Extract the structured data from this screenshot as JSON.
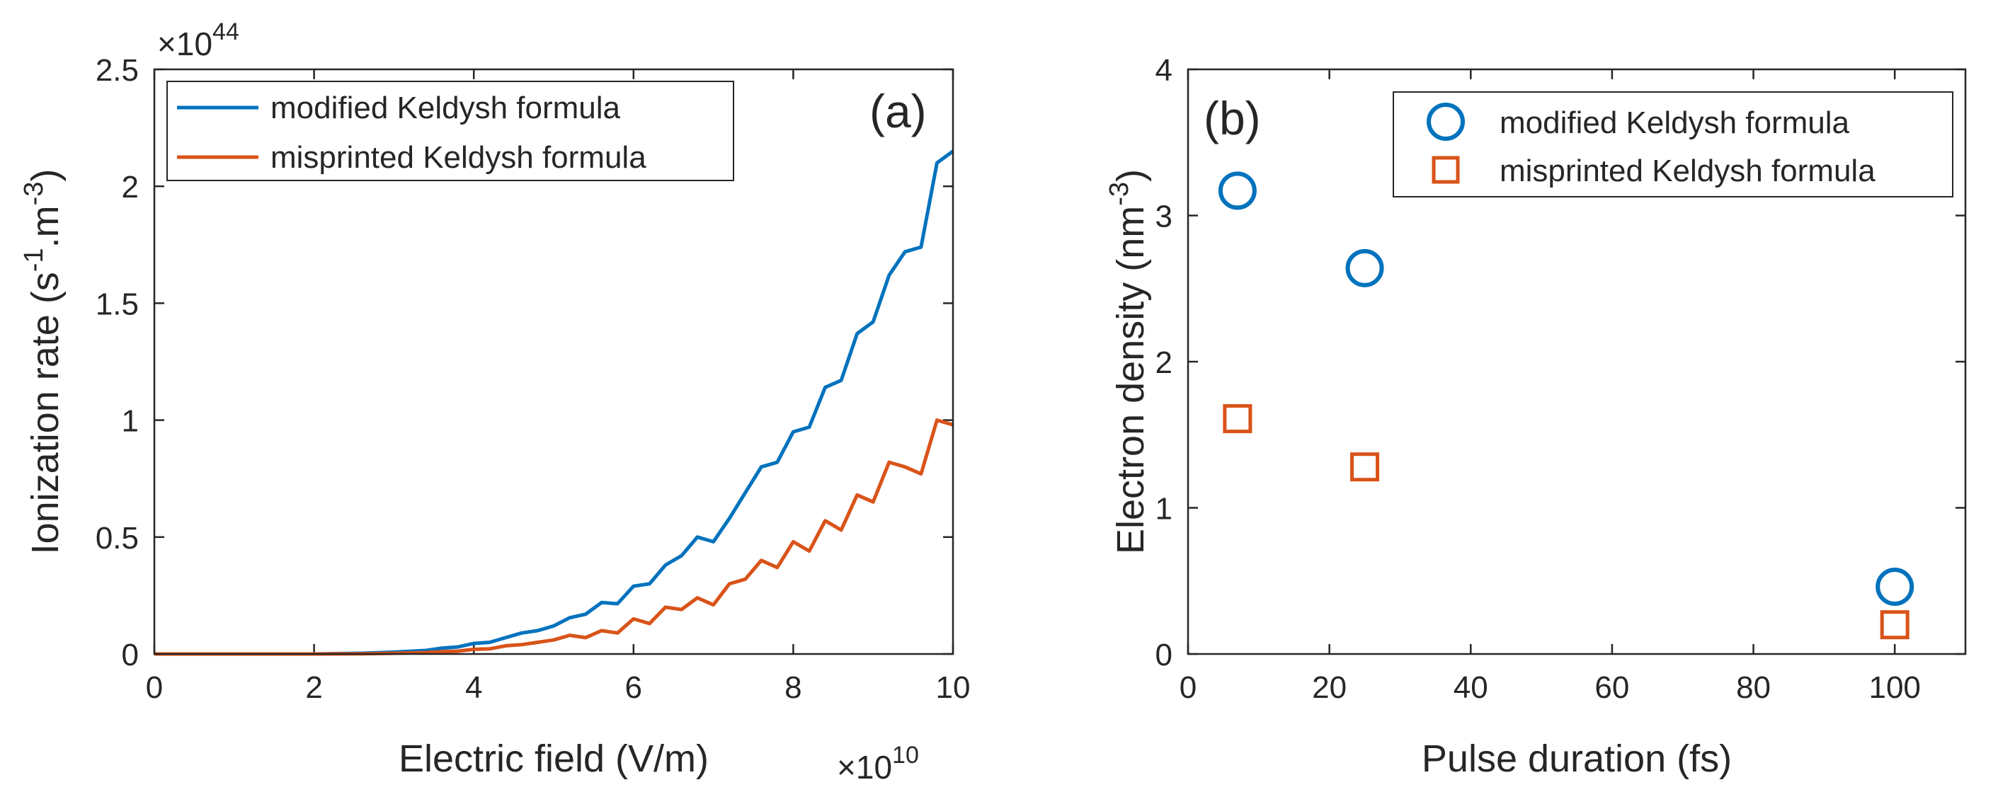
{
  "chart_data": [
    {
      "type": "line",
      "panel_label": "(a)",
      "xlabel": "Electric field (V/m)",
      "ylabel_main": "Ionization rate (s",
      "ylabel_sup1": "-1",
      "ylabel_mid": ".m",
      "ylabel_sup2": "-3",
      "ylabel_end": ")",
      "x_multiplier_base": "×10",
      "x_multiplier_exp": "10",
      "y_multiplier_base": "×10",
      "y_multiplier_exp": "44",
      "xlim": [
        0,
        10
      ],
      "ylim": [
        0,
        2.5
      ],
      "xticks": [
        "0",
        "2",
        "4",
        "6",
        "8",
        "10"
      ],
      "yticks": [
        "0",
        "0.5",
        "1",
        "1.5",
        "2",
        "2.5"
      ],
      "xtick_values": [
        0,
        2,
        4,
        6,
        8,
        10
      ],
      "ytick_values": [
        0,
        0.5,
        1,
        1.5,
        2,
        2.5
      ],
      "legend_position": "top-left",
      "series": [
        {
          "name": "modified Keldysh formula",
          "color": "#0072BD",
          "x": [
            0,
            1,
            2,
            2.6,
            3,
            3.4,
            3.6,
            3.8,
            4.0,
            4.2,
            4.4,
            4.6,
            4.8,
            5.0,
            5.2,
            5.4,
            5.6,
            5.8,
            6.0,
            6.2,
            6.4,
            6.6,
            6.8,
            7.0,
            7.2,
            7.4,
            7.6,
            7.8,
            8.0,
            8.2,
            8.4,
            8.6,
            8.8,
            9.0,
            9.2,
            9.4,
            9.6,
            9.8,
            10.0
          ],
          "values": [
            0,
            0,
            0,
            0.003,
            0.008,
            0.015,
            0.025,
            0.03,
            0.045,
            0.05,
            0.07,
            0.09,
            0.1,
            0.12,
            0.155,
            0.17,
            0.22,
            0.215,
            0.29,
            0.3,
            0.38,
            0.42,
            0.5,
            0.48,
            0.58,
            0.69,
            0.8,
            0.82,
            0.95,
            0.97,
            1.14,
            1.17,
            1.37,
            1.42,
            1.62,
            1.72,
            1.74,
            2.1,
            2.15
          ]
        },
        {
          "name": "misprinted Keldysh formula",
          "color": "#D95319",
          "x": [
            0,
            1,
            2,
            2.6,
            3,
            3.4,
            3.6,
            3.8,
            4.0,
            4.2,
            4.4,
            4.6,
            4.8,
            5.0,
            5.2,
            5.4,
            5.6,
            5.8,
            6.0,
            6.2,
            6.4,
            6.6,
            6.8,
            7.0,
            7.2,
            7.4,
            7.6,
            7.8,
            8.0,
            8.2,
            8.4,
            8.6,
            8.8,
            9.0,
            9.2,
            9.4,
            9.6,
            9.8,
            10.0
          ],
          "values": [
            0,
            0,
            0,
            0.001,
            0.003,
            0.006,
            0.01,
            0.012,
            0.02,
            0.022,
            0.035,
            0.04,
            0.05,
            0.06,
            0.08,
            0.07,
            0.1,
            0.09,
            0.15,
            0.13,
            0.2,
            0.19,
            0.24,
            0.21,
            0.3,
            0.32,
            0.4,
            0.37,
            0.48,
            0.44,
            0.57,
            0.53,
            0.68,
            0.65,
            0.82,
            0.8,
            0.77,
            1.0,
            0.98
          ]
        }
      ]
    },
    {
      "type": "scatter",
      "panel_label": "(b)",
      "xlabel": "Pulse duration (fs)",
      "ylabel_main": "Electron density (nm",
      "ylabel_sup": "-3",
      "ylabel_end": ")",
      "xlim": [
        0,
        110
      ],
      "ylim": [
        0,
        4
      ],
      "xticks": [
        "0",
        "20",
        "40",
        "60",
        "80",
        "100"
      ],
      "yticks": [
        "0",
        "1",
        "2",
        "3",
        "4"
      ],
      "xtick_values": [
        0,
        20,
        40,
        60,
        80,
        100
      ],
      "ytick_values": [
        0,
        1,
        2,
        3,
        4
      ],
      "legend_position": "top-right",
      "series": [
        {
          "name": "modified Keldysh formula",
          "marker": "circle",
          "color": "#0072BD",
          "x": [
            7,
            25,
            100
          ],
          "values": [
            3.17,
            2.64,
            0.46
          ]
        },
        {
          "name": "misprinted Keldysh formula",
          "marker": "square",
          "color": "#D95319",
          "x": [
            7,
            25,
            100
          ],
          "values": [
            1.61,
            1.28,
            0.2
          ]
        }
      ]
    }
  ]
}
